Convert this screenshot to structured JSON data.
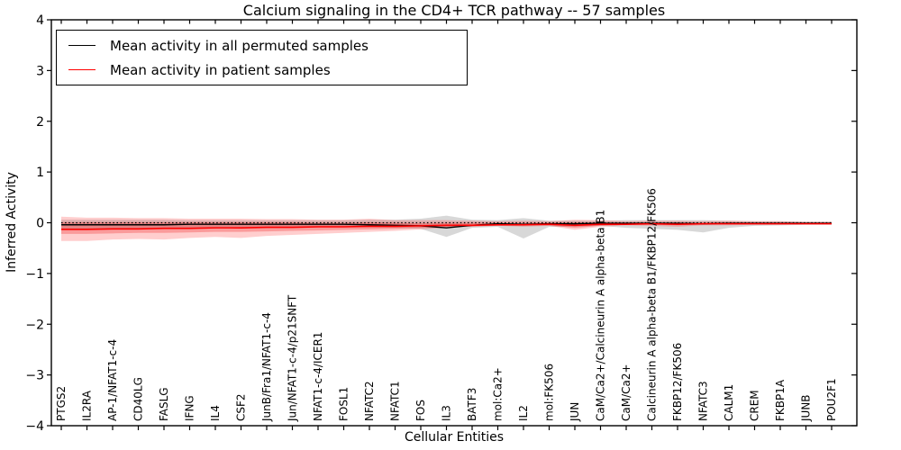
{
  "figure": {
    "background": "#ffffff"
  },
  "chart_data": {
    "type": "line",
    "title": "Calcium signaling in the CD4+ TCR pathway -- 57 samples",
    "xlabel": "Cellular Entities",
    "ylabel": "Inferred Activity",
    "ylim": [
      -4,
      4
    ],
    "yticks": [
      4,
      3,
      2,
      1,
      0,
      -1,
      -2,
      -3,
      -4
    ],
    "grid": false,
    "legend_position": "upper-left",
    "zero_line": {
      "value": 0,
      "style": "dotted",
      "color": "#000000"
    },
    "categories": [
      "PTGS2",
      "IL2RA",
      "AP-1/NFAT1-c-4",
      "CD40LG",
      "FASLG",
      "IFNG",
      "IL4",
      "CSF2",
      "JunB/Fra1/NFAT1-c-4",
      "Jun/NFAT1-c-4/p21SNFT",
      "NFAT1-c-4/ICER1",
      "FOSL1",
      "NFATC2",
      "NFATC1",
      "FOS",
      "IL3",
      "BATF3",
      "mol:Ca2+",
      "IL2",
      "mol:FK506",
      "JUN",
      "CaM/Ca2+/Calcineurin A alpha-beta B1",
      "CaM/Ca2+",
      "Calcineurin A alpha-beta B1/FKBP12/FK506",
      "FKBP12/FK506",
      "NFATC3",
      "CALM1",
      "CREM",
      "FKBP1A",
      "JUNB",
      "POU2F1"
    ],
    "series": [
      {
        "name": "Mean activity in all permuted samples",
        "color": "#000000",
        "values": [
          -0.04,
          -0.04,
          -0.04,
          -0.04,
          -0.04,
          -0.03,
          -0.03,
          -0.03,
          -0.03,
          -0.03,
          -0.03,
          -0.03,
          -0.04,
          -0.05,
          -0.06,
          -0.1,
          -0.05,
          -0.02,
          -0.03,
          -0.02,
          -0.02,
          -0.01,
          -0.01,
          -0.01,
          -0.01,
          -0.02,
          -0.01,
          -0.01,
          -0.01,
          -0.01,
          -0.01
        ],
        "band": {
          "color": "#999999",
          "opacity": 0.38,
          "upper": [
            0.06,
            0.06,
            0.06,
            0.06,
            0.06,
            0.05,
            0.05,
            0.05,
            0.05,
            0.05,
            0.05,
            0.05,
            0.06,
            0.06,
            0.08,
            0.14,
            0.06,
            0.05,
            0.09,
            0.04,
            0.04,
            0.04,
            0.05,
            0.05,
            0.05,
            0.05,
            0.04,
            0.03,
            0.03,
            0.02,
            0.02
          ],
          "lower": [
            -0.12,
            -0.12,
            -0.12,
            -0.11,
            -0.11,
            -0.1,
            -0.1,
            -0.1,
            -0.09,
            -0.09,
            -0.08,
            -0.08,
            -0.09,
            -0.1,
            -0.12,
            -0.28,
            -0.1,
            -0.08,
            -0.31,
            -0.08,
            -0.08,
            -0.06,
            -0.1,
            -0.12,
            -0.14,
            -0.19,
            -0.1,
            -0.06,
            -0.05,
            -0.04,
            -0.04
          ]
        }
      },
      {
        "name": "Mean activity in patient samples",
        "color": "#ff0000",
        "values": [
          -0.13,
          -0.13,
          -0.12,
          -0.12,
          -0.11,
          -0.11,
          -0.1,
          -0.1,
          -0.09,
          -0.09,
          -0.08,
          -0.08,
          -0.07,
          -0.07,
          -0.06,
          -0.05,
          -0.05,
          -0.04,
          -0.04,
          -0.03,
          -0.05,
          -0.03,
          -0.03,
          -0.02,
          -0.03,
          -0.02,
          -0.02,
          -0.02,
          -0.02,
          -0.02,
          -0.02
        ],
        "band": {
          "color": "#ff2222",
          "opacity": 0.22,
          "upper": [
            0.12,
            0.1,
            0.1,
            0.09,
            0.09,
            0.08,
            0.08,
            0.08,
            0.07,
            0.07,
            0.06,
            0.06,
            0.08,
            0.05,
            0.05,
            0.05,
            0.04,
            0.03,
            0.04,
            0.03,
            0.06,
            0.05,
            0.03,
            0.04,
            0.04,
            0.03,
            0.04,
            0.03,
            0.03,
            0.02,
            0.02
          ],
          "lower": [
            -0.36,
            -0.36,
            -0.33,
            -0.32,
            -0.33,
            -0.3,
            -0.28,
            -0.3,
            -0.26,
            -0.24,
            -0.22,
            -0.2,
            -0.18,
            -0.16,
            -0.13,
            -0.1,
            -0.08,
            -0.06,
            -0.08,
            -0.06,
            -0.14,
            -0.08,
            -0.05,
            -0.06,
            -0.08,
            -0.05,
            -0.05,
            -0.04,
            -0.04,
            -0.03,
            -0.03
          ]
        },
        "inner_band": {
          "color": "#ee2222",
          "opacity": 0.3,
          "upper": [
            0.01,
            0.01,
            0.01,
            0.01,
            0.01,
            0.01,
            0.01,
            0.01,
            0.01,
            0.01,
            0.0,
            0.0,
            0.01,
            0.0,
            -0.01,
            0.0,
            0.0,
            0.0,
            0.0,
            0.0,
            0.01,
            0.0,
            -0.01,
            0.0,
            0.0,
            0.0,
            0.01,
            0.0,
            0.0,
            0.0,
            0.0
          ],
          "lower": [
            -0.22,
            -0.22,
            -0.21,
            -0.2,
            -0.2,
            -0.19,
            -0.18,
            -0.18,
            -0.17,
            -0.16,
            -0.15,
            -0.14,
            -0.13,
            -0.12,
            -0.1,
            -0.08,
            -0.07,
            -0.06,
            -0.06,
            -0.05,
            -0.1,
            -0.06,
            -0.04,
            -0.04,
            -0.05,
            -0.04,
            -0.03,
            -0.03,
            -0.03,
            -0.02,
            -0.02
          ]
        }
      }
    ]
  }
}
